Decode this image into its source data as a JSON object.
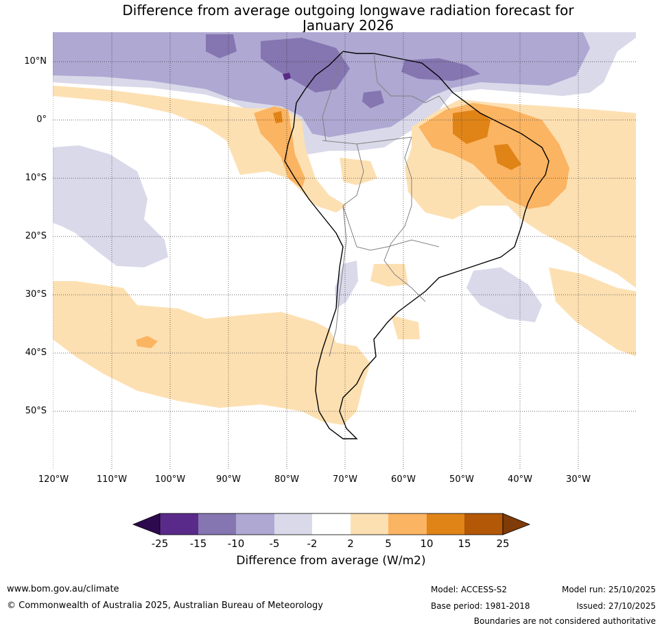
{
  "title_line1": "Difference from average outgoing longwave radiation forecast for",
  "title_line2": "January 2026",
  "lat_labels": [
    "10°N",
    "0°",
    "10°S",
    "20°S",
    "30°S",
    "40°S",
    "50°S"
  ],
  "lon_labels": [
    "120°W",
    "110°W",
    "100°W",
    "90°W",
    "80°W",
    "70°W",
    "60°W",
    "50°W",
    "40°W",
    "30°W"
  ],
  "colorbar": {
    "title": "Difference from average (W/m2)",
    "ticks": [
      "-25",
      "-15",
      "-10",
      "-5",
      "-2",
      "2",
      "5",
      "10",
      "15",
      "25"
    ],
    "colors": [
      "#2d0a4e",
      "#5a2a8a",
      "#8575b0",
      "#aea8d2",
      "#d9d9ea",
      "#ffffff",
      "#fde0b2",
      "#fbb462",
      "#e08417",
      "#b35806",
      "#7f3b08"
    ]
  },
  "footer": {
    "website": "www.bom.gov.au/climate",
    "copyright": "© Commonwealth of Australia 2025, Australian Bureau of Meteorology",
    "model": "Model: ACCESS-S2",
    "base_period": "Base period: 1981-2018",
    "model_run": "Model run: 25/10/2025",
    "issued": "Issued: 27/10/2025",
    "disclaimer": "Boundaries are not considered authoritative"
  }
}
